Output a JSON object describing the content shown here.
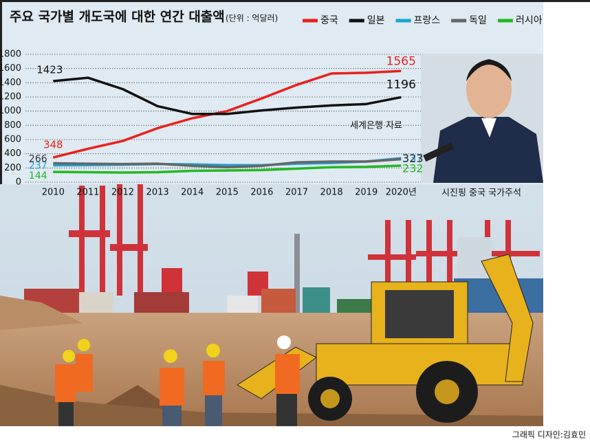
{
  "chart_data": {
    "type": "line",
    "title": "주요 국가별 개도국에 대한 연간 대출액",
    "subtitle": "(단위 : 억달러)",
    "source": "세계은행 자료",
    "photo_caption": "시진핑 중국 국가주석",
    "credit": "그래픽 디자인:김효민",
    "categories": [
      "2010",
      "2011",
      "2012",
      "2013",
      "2014",
      "2015",
      "2016",
      "2017",
      "2018",
      "2019",
      "2020년"
    ],
    "series": [
      {
        "name": "중국",
        "color": "#e8211c",
        "values": [
          348,
          470,
          580,
          760,
          900,
          1000,
          1180,
          1370,
          1530,
          1540,
          1565
        ]
      },
      {
        "name": "일본",
        "color": "#111111",
        "values": [
          1423,
          1470,
          1310,
          1070,
          960,
          960,
          1010,
          1050,
          1080,
          1100,
          1196
        ]
      },
      {
        "name": "프랑스",
        "color": "#1ea1d8",
        "values": [
          237,
          240,
          245,
          255,
          250,
          240,
          240,
          260,
          270,
          290,
          337
        ]
      },
      {
        "name": "독일",
        "color": "#666666",
        "values": [
          266,
          260,
          255,
          260,
          230,
          210,
          230,
          280,
          290,
          290,
          323
        ]
      },
      {
        "name": "러시아",
        "color": "#22b822",
        "values": [
          144,
          140,
          135,
          140,
          160,
          165,
          170,
          190,
          210,
          215,
          232
        ]
      }
    ],
    "ylim": [
      0,
      1800
    ],
    "yticks": [
      0,
      200,
      400,
      600,
      800,
      1000,
      1200,
      1400,
      1600,
      1800
    ],
    "grid": true
  }
}
